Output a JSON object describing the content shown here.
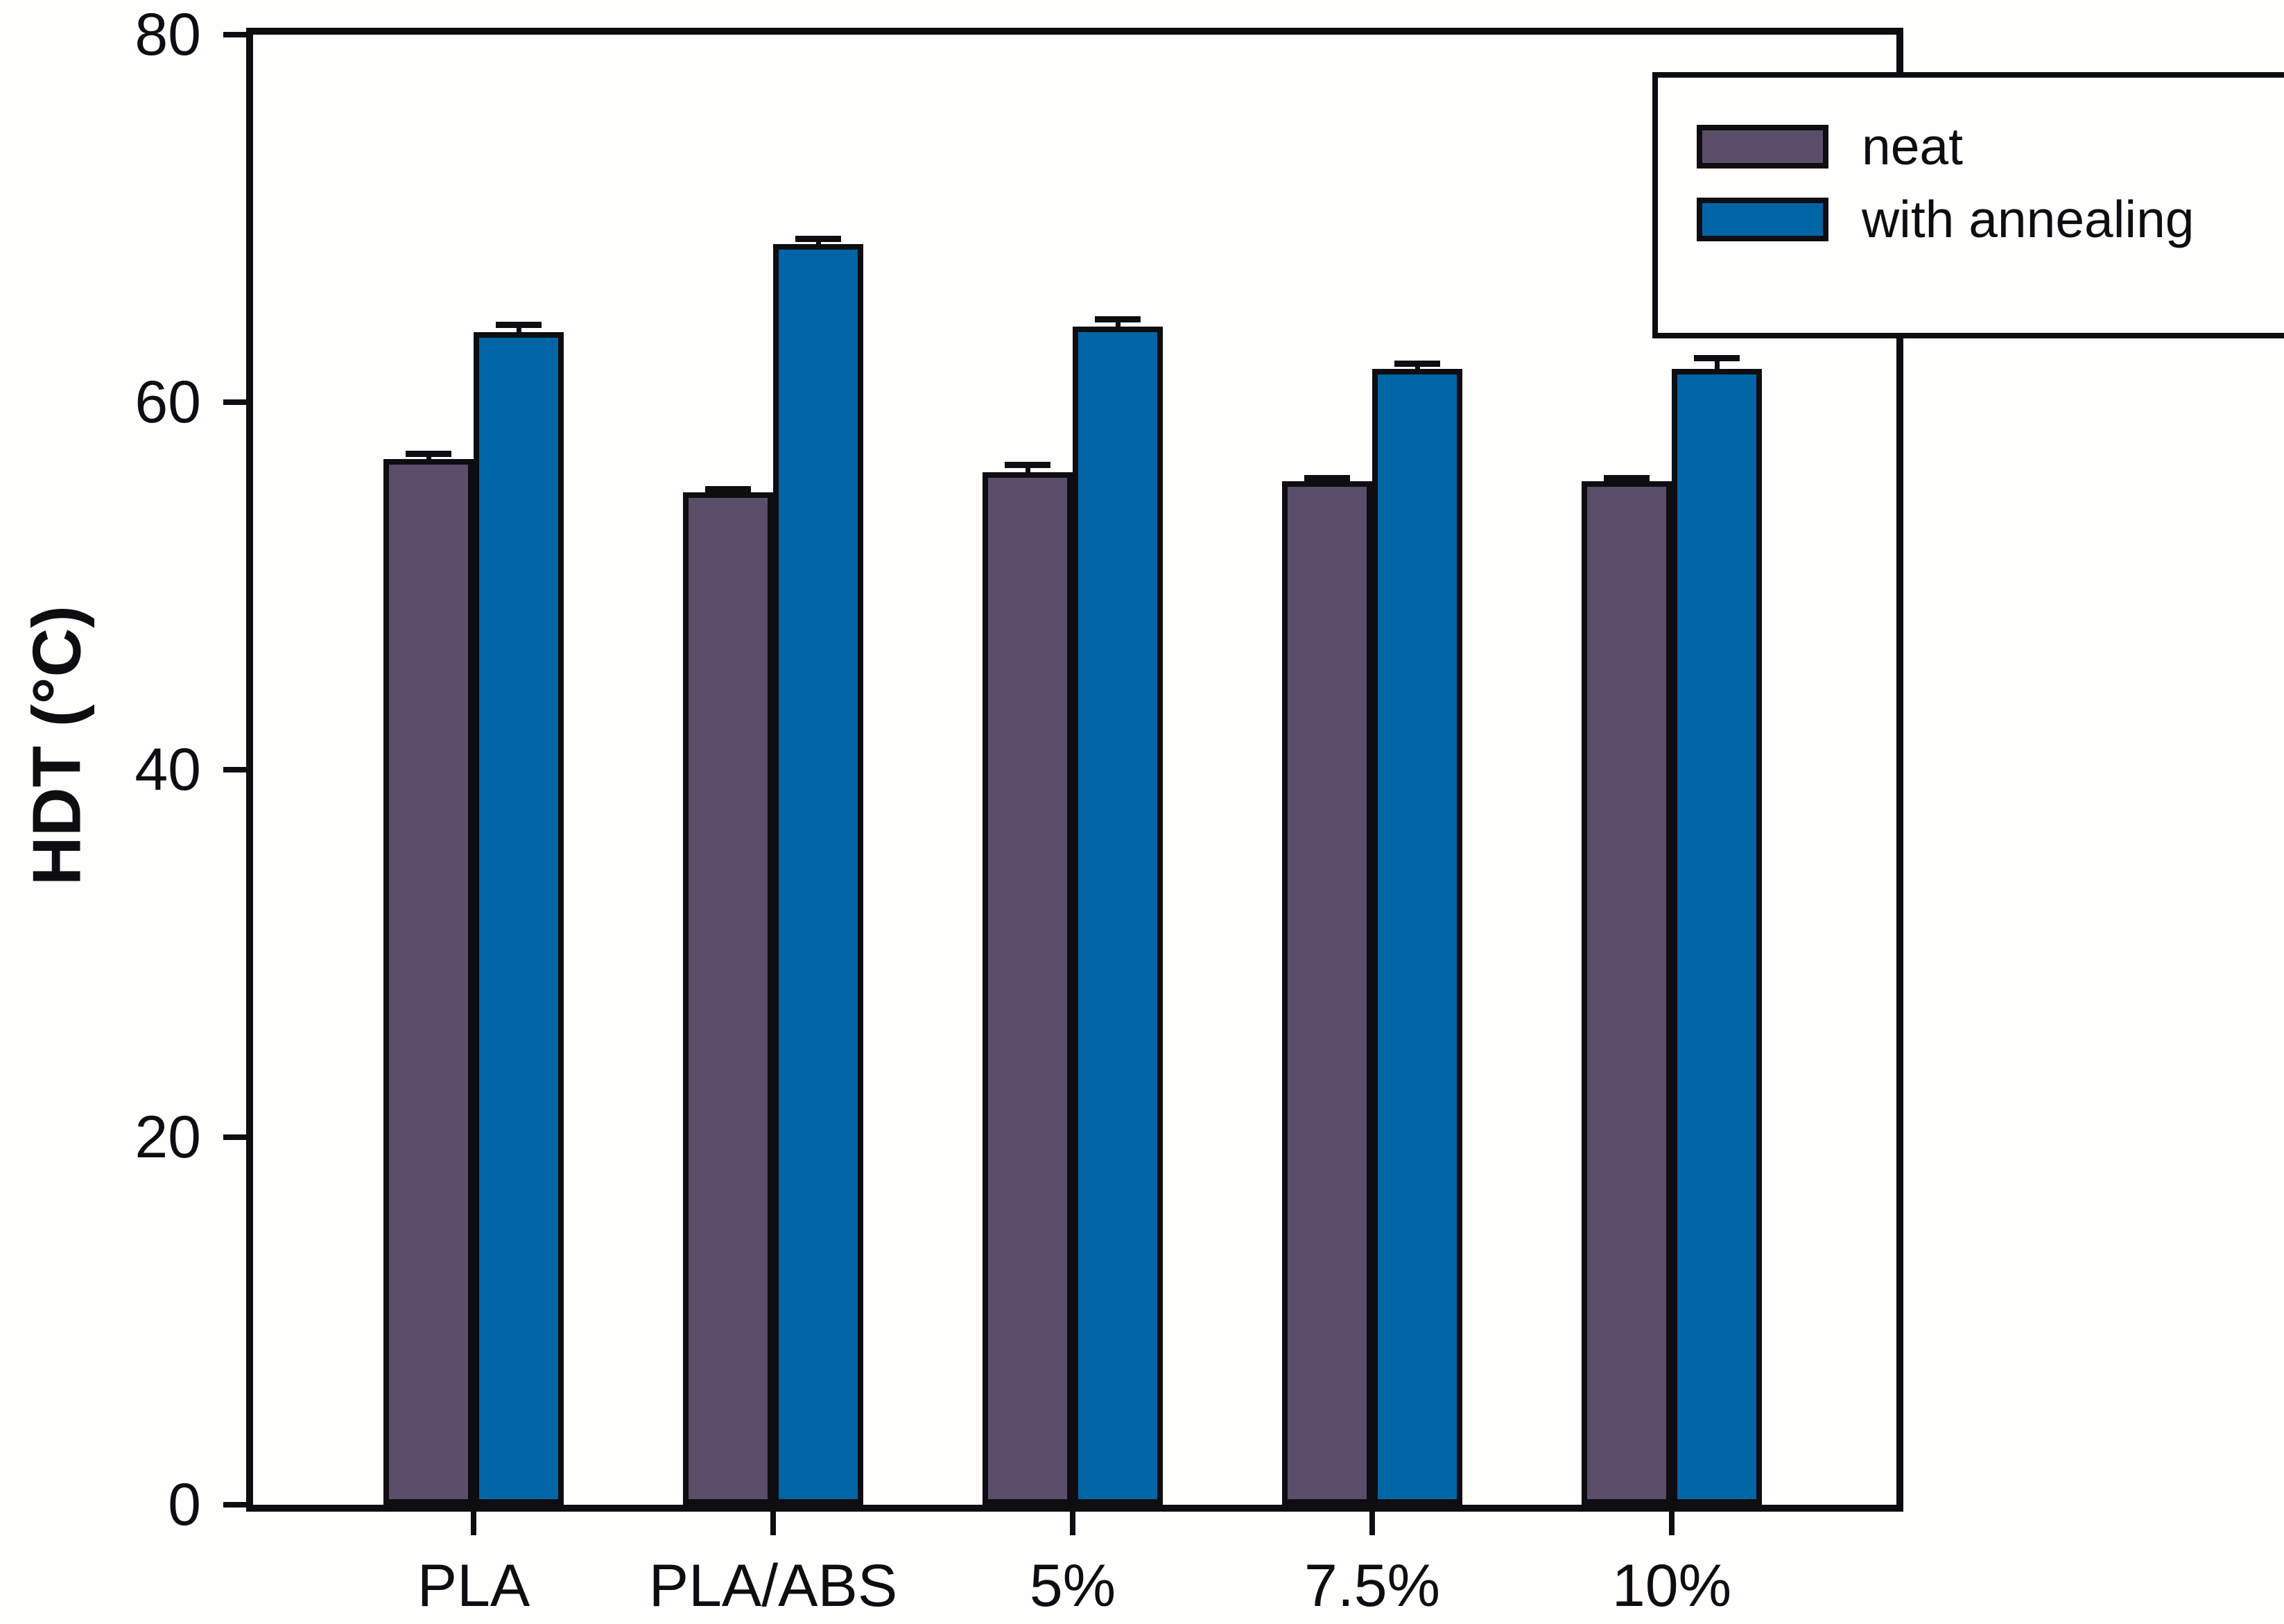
{
  "chart_data": {
    "type": "bar",
    "title": "",
    "xlabel": "",
    "ylabel": "HDT (°C)",
    "categories": [
      "PLA",
      "PLA/ABS",
      "5%",
      "7.5%",
      "10%"
    ],
    "series": [
      {
        "name": "neat",
        "color": "#5a4e6a",
        "values": [
          56.9,
          55.1,
          56.2,
          55.7,
          55.7
        ],
        "errors": [
          0.3,
          0.2,
          0.4,
          0.2,
          0.2
        ]
      },
      {
        "name": "with annealing",
        "color": "#0065a5",
        "values": [
          63.8,
          68.6,
          64.1,
          61.8,
          61.8
        ],
        "errors": [
          0.4,
          0.3,
          0.4,
          0.3,
          0.6
        ]
      }
    ],
    "ylim": [
      0,
      80
    ],
    "y_ticks": [
      0,
      20,
      40,
      60,
      80
    ],
    "grid": false,
    "error_bars": true,
    "legend_position": "top-right",
    "axis_color": "#0e0d11",
    "bar_border_color": "#0e0d11",
    "background_color": "#fffefc"
  }
}
